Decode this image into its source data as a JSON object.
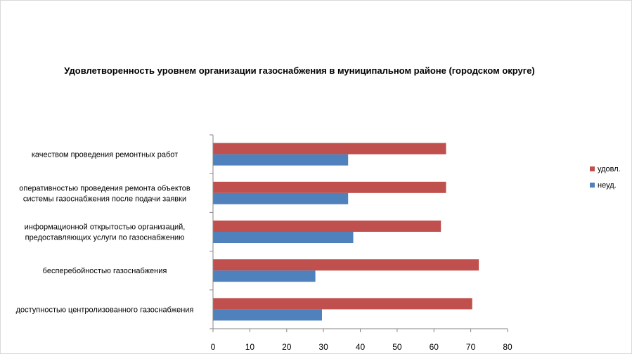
{
  "chart_data": {
    "type": "bar",
    "orientation": "horizontal",
    "title": "Удовлетворенность уровнем организации газоснабжения в муниципальном районе (городском округе)",
    "categories": [
      [
        "качеством проведения ремонтных работ"
      ],
      [
        "оперативностью проведения ремонта объектов",
        "системы газоснабжения после подачи заявки"
      ],
      [
        "информационной открытостью организаций,",
        "предоставляющих услуги по газоснабжению"
      ],
      [
        "бесперебойностью  газоснабжения"
      ],
      [
        "доступностью центролизованного газоснабжения"
      ]
    ],
    "series": [
      {
        "name": "удовл.",
        "color": "#C0504D",
        "values": [
          63.3,
          63.3,
          61.9,
          72.2,
          70.4
        ]
      },
      {
        "name": "неуд.",
        "color": "#4F81BD",
        "values": [
          36.7,
          36.7,
          38.1,
          27.8,
          29.6
        ]
      }
    ],
    "xlim": [
      0,
      80
    ],
    "x_ticks": [
      "0",
      "10",
      "20",
      "30",
      "40",
      "50",
      "60",
      "70",
      "80"
    ],
    "legend_position": "right",
    "grid": false
  }
}
